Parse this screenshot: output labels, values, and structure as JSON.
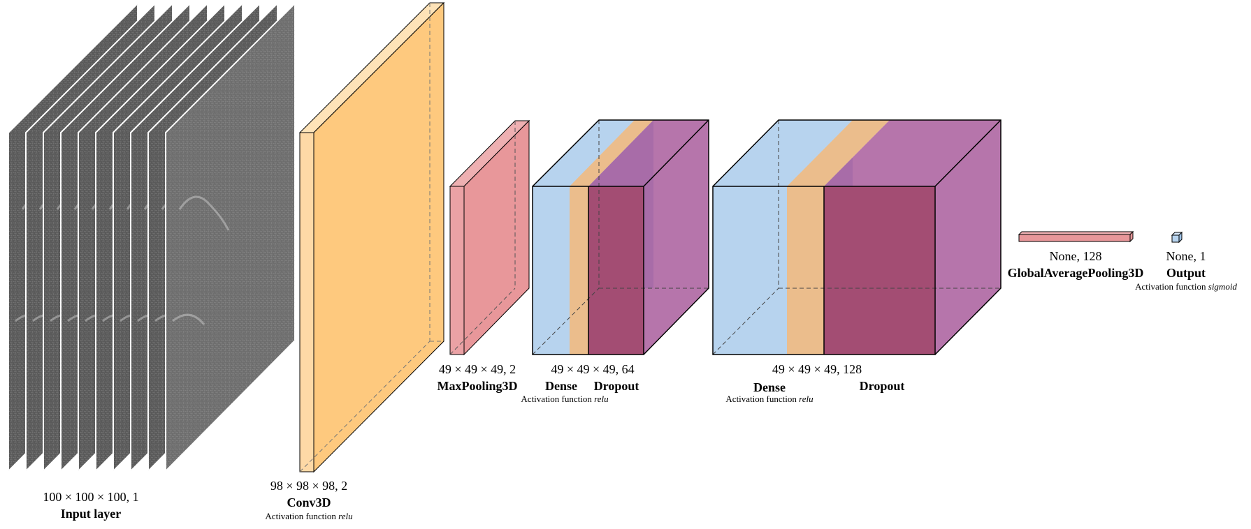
{
  "colors": {
    "conv": "#fec97e",
    "pool": "#e8979a",
    "dense": "#b7d3ee",
    "dense_band": "#ebbd8c",
    "dropout": "#a14e93",
    "output": "#b7d3ee",
    "outline": "#000000"
  },
  "layers": [
    {
      "id": "input",
      "dims": "100 × 100 × 100, 1",
      "name": "Input layer"
    },
    {
      "id": "conv3d",
      "dims": "98 × 98 × 98, 2",
      "name": "Conv3D",
      "activation_prefix": "Activation function",
      "activation": "relu"
    },
    {
      "id": "maxpool",
      "dims": "49 × 49 × 49, 2",
      "name": "MaxPooling3D"
    },
    {
      "id": "block1",
      "dims": "49 × 49 × 49, 64",
      "dense_name": "Dense",
      "dropout_name": "Dropout",
      "activation_prefix": "Activation function",
      "activation": "relu"
    },
    {
      "id": "block2",
      "dims": "49 × 49 × 49, 128",
      "dense_name": "Dense",
      "dropout_name": "Dropout",
      "activation_prefix": "Activation function",
      "activation": "relu"
    },
    {
      "id": "gap",
      "dims": "None, 128",
      "name": "GlobalAveragePooling3D"
    },
    {
      "id": "output",
      "dims": "None, 1",
      "name": "Output",
      "activation_prefix": "Activation function",
      "activation": "sigmoid"
    }
  ]
}
